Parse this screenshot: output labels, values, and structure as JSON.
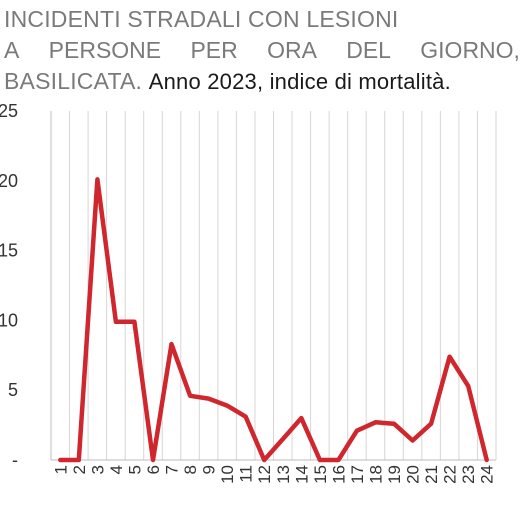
{
  "title": {
    "line1": "INCIDENTI STRADALI CON LESIONI",
    "line2_words": [
      "A",
      "PERSONE",
      "PER",
      "ORA",
      "DEL",
      "GIORNO,"
    ],
    "line3_main": "BASILICATA.",
    "line3_sub": "Anno 2023, indice di mortalità."
  },
  "chart_data": {
    "type": "line",
    "x": [
      "1",
      "2",
      "3",
      "4",
      "5",
      "6",
      "7",
      "8",
      "9",
      "10",
      "11",
      "12",
      "13",
      "14",
      "15",
      "16",
      "17",
      "18",
      "19",
      "20",
      "21",
      "22",
      "23",
      "24"
    ],
    "series": [
      {
        "values": [
          0,
          0,
          20.1,
          9.9,
          9.9,
          0,
          8.3,
          4.6,
          4.4,
          3.9,
          3.1,
          0,
          1.5,
          3.0,
          0,
          0,
          2.1,
          2.7,
          2.6,
          1.4,
          2.6,
          7.4,
          5.3,
          0
        ],
        "color": "#d0262d"
      }
    ],
    "y_ticks": [
      "-",
      "5",
      "10",
      "15",
      "20",
      "25"
    ],
    "ylim": [
      0,
      25
    ],
    "grid": "vertical",
    "grid_color": "#d6d6d6"
  }
}
